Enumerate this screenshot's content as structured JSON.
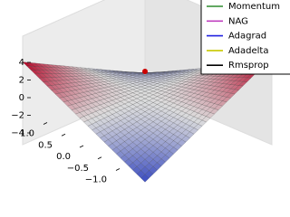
{
  "chart_data": {
    "type": "surface",
    "zticks": [
      4,
      2,
      0,
      {
        "value": -2,
        "label": "−2"
      },
      {
        "value": -4,
        "label": "−4"
      }
    ],
    "xticks": [
      {
        "value": 1,
        "label": "1.0"
      },
      {
        "value": 0.5,
        "label": "0.5"
      },
      {
        "value": 0,
        "label": "0.0"
      },
      {
        "value": -0.5,
        "label": "−0.5"
      },
      {
        "value": -1,
        "label": "−1.0"
      }
    ],
    "series": [
      {
        "name": "Momentum",
        "color": "#2e8b2e"
      },
      {
        "name": "NAG",
        "color": "#c040c0"
      },
      {
        "name": "Adagrad",
        "color": "#2020e0"
      },
      {
        "name": "Adadelta",
        "color": "#c8c800"
      },
      {
        "name": "Rmsprop",
        "color": "#000000"
      }
    ],
    "legend": "upper right"
  }
}
